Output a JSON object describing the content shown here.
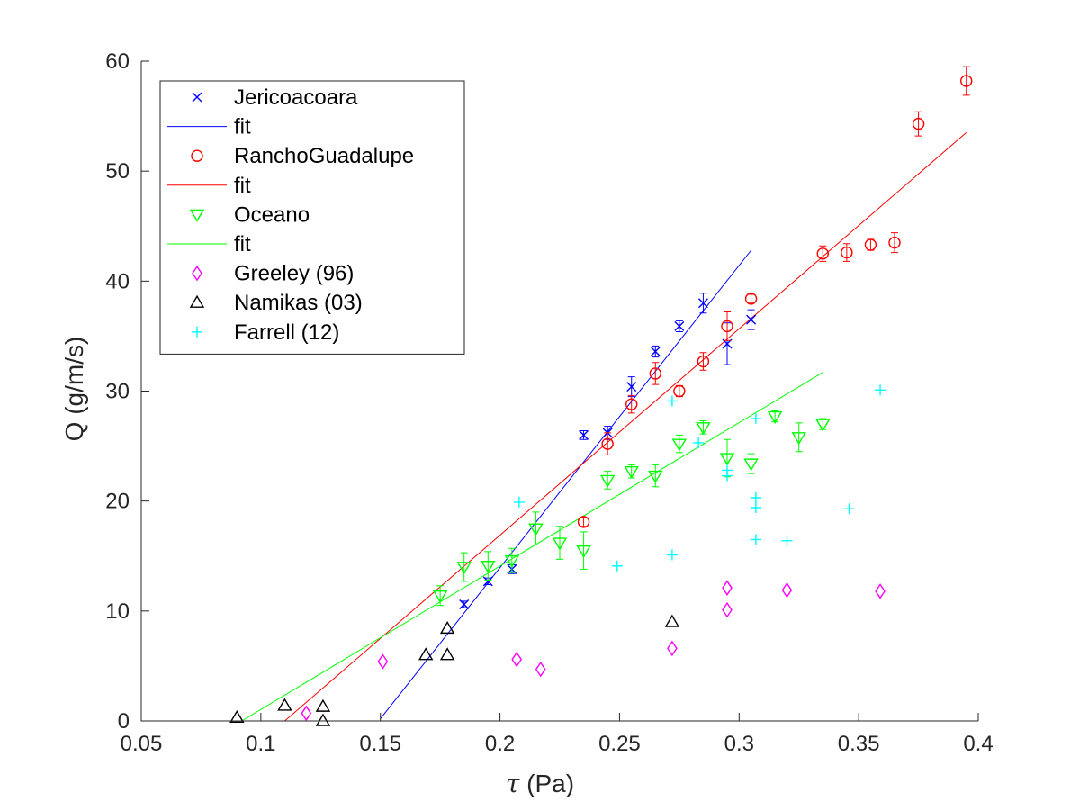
{
  "chart_data": {
    "type": "scatter",
    "xlabel_symbol": "τ",
    "xlabel_unit": " (Pa)",
    "ylabel": "Q (g/m/s)",
    "xlim": [
      0.05,
      0.4
    ],
    "ylim": [
      0,
      60
    ],
    "xticks": [
      "0.05",
      "0.1",
      "0.15",
      "0.2",
      "0.25",
      "0.3",
      "0.35",
      "0.4"
    ],
    "yticks": [
      "0",
      "10",
      "20",
      "30",
      "40",
      "50",
      "60"
    ],
    "grid": false,
    "legend_position": "top-left",
    "series": [
      {
        "name": "Jericoacoara",
        "marker": "x",
        "color": "#0000ff",
        "points": [
          {
            "x": 0.185,
            "y": 10.6,
            "err": 0.3
          },
          {
            "x": 0.195,
            "y": 12.7,
            "err": 0.3
          },
          {
            "x": 0.205,
            "y": 13.8,
            "err": 0.4
          },
          {
            "x": 0.235,
            "y": 26.0,
            "err": 0.4
          },
          {
            "x": 0.245,
            "y": 26.2,
            "err": 0.6
          },
          {
            "x": 0.255,
            "y": 30.4,
            "err": 0.9
          },
          {
            "x": 0.265,
            "y": 33.6,
            "err": 0.5
          },
          {
            "x": 0.275,
            "y": 35.9,
            "err": 0.5
          },
          {
            "x": 0.285,
            "y": 38.0,
            "err": 0.9
          },
          {
            "x": 0.295,
            "y": 34.3,
            "err": 1.9
          },
          {
            "x": 0.305,
            "y": 36.5,
            "err": 0.9
          }
        ],
        "fit": {
          "name": "fit",
          "x": [
            0.15,
            0.305
          ],
          "y": [
            0.2,
            42.8
          ]
        }
      },
      {
        "name": "RanchoGuadalupe",
        "marker": "o",
        "color": "#ff0000",
        "points": [
          {
            "x": 0.235,
            "y": 18.1,
            "err": 0.4
          },
          {
            "x": 0.245,
            "y": 25.2,
            "err": 1.0
          },
          {
            "x": 0.255,
            "y": 28.8,
            "err": 0.8
          },
          {
            "x": 0.265,
            "y": 31.6,
            "err": 1.0
          },
          {
            "x": 0.275,
            "y": 30.0,
            "err": 0.5
          },
          {
            "x": 0.285,
            "y": 32.7,
            "err": 0.8
          },
          {
            "x": 0.295,
            "y": 35.9,
            "err": 1.3
          },
          {
            "x": 0.305,
            "y": 38.4,
            "err": 0.4
          },
          {
            "x": 0.335,
            "y": 42.5,
            "err": 0.7
          },
          {
            "x": 0.345,
            "y": 42.6,
            "err": 0.8
          },
          {
            "x": 0.355,
            "y": 43.3,
            "err": 0.5
          },
          {
            "x": 0.365,
            "y": 43.5,
            "err": 0.9
          },
          {
            "x": 0.375,
            "y": 54.3,
            "err": 1.1
          },
          {
            "x": 0.395,
            "y": 58.2,
            "err": 1.3
          }
        ],
        "fit": {
          "name": "fit",
          "x": [
            0.11,
            0.395
          ],
          "y": [
            0.0,
            53.5
          ]
        }
      },
      {
        "name": "Oceano",
        "marker": "v",
        "color": "#00ff00",
        "points": [
          {
            "x": 0.175,
            "y": 11.4,
            "err": 0.9
          },
          {
            "x": 0.185,
            "y": 14.0,
            "err": 1.3
          },
          {
            "x": 0.195,
            "y": 14.1,
            "err": 1.3
          },
          {
            "x": 0.205,
            "y": 14.6,
            "err": 1.1
          },
          {
            "x": 0.215,
            "y": 17.5,
            "err": 1.5
          },
          {
            "x": 0.225,
            "y": 16.2,
            "err": 1.5
          },
          {
            "x": 0.235,
            "y": 15.5,
            "err": 1.7
          },
          {
            "x": 0.245,
            "y": 21.9,
            "err": 0.8
          },
          {
            "x": 0.255,
            "y": 22.7,
            "err": 0.6
          },
          {
            "x": 0.265,
            "y": 22.3,
            "err": 1.0
          },
          {
            "x": 0.275,
            "y": 25.2,
            "err": 0.8
          },
          {
            "x": 0.285,
            "y": 26.7,
            "err": 0.6
          },
          {
            "x": 0.295,
            "y": 23.9,
            "err": 1.7
          },
          {
            "x": 0.305,
            "y": 23.4,
            "err": 0.9
          },
          {
            "x": 0.315,
            "y": 27.7,
            "err": 0.5
          },
          {
            "x": 0.325,
            "y": 25.8,
            "err": 1.3
          },
          {
            "x": 0.335,
            "y": 27.0,
            "err": 0.5
          }
        ],
        "fit": {
          "name": "fit",
          "x": [
            0.092,
            0.335
          ],
          "y": [
            0.0,
            31.7
          ]
        }
      },
      {
        "name": "Greeley (96)",
        "marker": "d",
        "color": "#ff00ff",
        "points": [
          {
            "x": 0.119,
            "y": 0.7
          },
          {
            "x": 0.151,
            "y": 5.4
          },
          {
            "x": 0.207,
            "y": 5.6
          },
          {
            "x": 0.217,
            "y": 4.7
          },
          {
            "x": 0.272,
            "y": 6.6
          },
          {
            "x": 0.295,
            "y": 12.1
          },
          {
            "x": 0.295,
            "y": 10.1
          },
          {
            "x": 0.32,
            "y": 11.9
          },
          {
            "x": 0.359,
            "y": 11.8
          }
        ]
      },
      {
        "name": "Namikas (03)",
        "marker": "^",
        "color": "#000000",
        "points": [
          {
            "x": 0.09,
            "y": 0.3
          },
          {
            "x": 0.11,
            "y": 1.4
          },
          {
            "x": 0.126,
            "y": 1.3
          },
          {
            "x": 0.126,
            "y": 0.0
          },
          {
            "x": 0.169,
            "y": 6.0
          },
          {
            "x": 0.178,
            "y": 8.4
          },
          {
            "x": 0.178,
            "y": 6.0
          },
          {
            "x": 0.272,
            "y": 9.0
          }
        ]
      },
      {
        "name": "Farrell (12)",
        "marker": "+",
        "color": "#00ffff",
        "points": [
          {
            "x": 0.208,
            "y": 19.9
          },
          {
            "x": 0.249,
            "y": 14.1
          },
          {
            "x": 0.272,
            "y": 29.1
          },
          {
            "x": 0.272,
            "y": 15.1
          },
          {
            "x": 0.283,
            "y": 25.3
          },
          {
            "x": 0.295,
            "y": 22.8
          },
          {
            "x": 0.295,
            "y": 22.3
          },
          {
            "x": 0.307,
            "y": 27.5
          },
          {
            "x": 0.307,
            "y": 20.3
          },
          {
            "x": 0.307,
            "y": 19.4
          },
          {
            "x": 0.307,
            "y": 16.5
          },
          {
            "x": 0.32,
            "y": 16.4
          },
          {
            "x": 0.346,
            "y": 19.3
          },
          {
            "x": 0.359,
            "y": 30.1
          }
        ]
      }
    ]
  }
}
